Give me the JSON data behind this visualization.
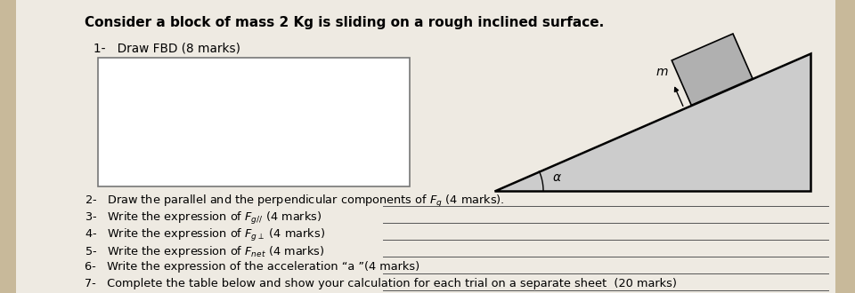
{
  "bg_color": "#c8b99a",
  "paper_color": "#eeeae2",
  "title": "Consider a block of mass 2 Kg is sliding on a rough inclined surface.",
  "item1": "1-   Draw FBD (8 marks)",
  "items": [
    "2-   Draw the parallel and the perpendicular components of $F_g$ (4 marks).",
    "3-   Write the expression of $F_{g//}$ (4 marks)",
    "4-   Write the expression of $F_{g\\perp}$ (4 marks)",
    "5-   Write the expression of $F_{net}$ (4 marks)",
    "6-   Write the expression of the acceleration “a ”(4 marks)",
    "7-   Complete the table below and show your calculation for each trial on a separate sheet  (20 marks)"
  ],
  "title_fontsize": 11,
  "item_fontsize": 9.8,
  "box_line_color": "#777777",
  "tri_face": "#cccccc",
  "block_face": "#b0b0b0",
  "line_color": "#555555"
}
